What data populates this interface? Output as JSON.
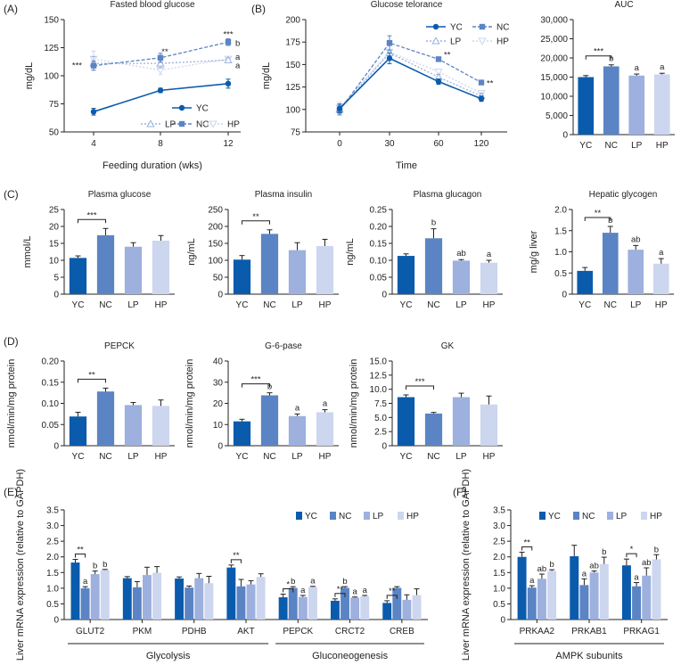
{
  "colors": {
    "YC": "#0b5bad",
    "NC": "#5b84c4",
    "LP": "#9db0de",
    "HP": "#ccd6ef",
    "axis": "#222222"
  },
  "panel_labels": {
    "A": "(A)",
    "B": "(B)",
    "C": "(C)",
    "D": "(D)",
    "E": "(E)",
    "F": "(F)"
  },
  "chart_data": [
    {
      "id": "fbg",
      "type": "line",
      "title": "Fasted blood glucose",
      "xlabel": "Feeding duration (wks)",
      "ylabel": "mg/dL",
      "x": [
        4,
        8,
        12
      ],
      "xticks": [
        "4",
        "8",
        "12"
      ],
      "ylim": [
        50,
        150
      ],
      "yticks": [
        50,
        75,
        100,
        125,
        150
      ],
      "series": [
        {
          "name": "YC",
          "values": [
            68,
            87,
            93
          ],
          "err": [
            3,
            2,
            4
          ]
        },
        {
          "name": "NC",
          "values": [
            109,
            116,
            130
          ],
          "err": [
            4,
            4,
            3
          ]
        },
        {
          "name": "LP",
          "values": [
            111,
            111,
            114
          ],
          "err": [
            6,
            4,
            2
          ]
        },
        {
          "name": "HP",
          "values": [
            115,
            105,
            115
          ],
          "err": [
            7,
            4,
            2
          ]
        }
      ],
      "legend": [
        "YC",
        "NC",
        "LP",
        "HP"
      ],
      "annotations": [
        {
          "text": "***",
          "at": "NC wk 4"
        },
        {
          "text": "**",
          "at": "NC wk 8"
        },
        {
          "text": "***",
          "at": "NC wk 12"
        },
        {
          "text": "b",
          "at": "NC wk 12"
        },
        {
          "text": "a",
          "at": "LP wk 12"
        },
        {
          "text": "a",
          "at": "HP wk 12"
        }
      ]
    },
    {
      "id": "ogtt",
      "type": "line",
      "title": "Glucose telorance",
      "xlabel": "Time",
      "ylabel": "mg/dL",
      "x": [
        0,
        30,
        60,
        120
      ],
      "xticks": [
        "0",
        "30",
        "60",
        "120"
      ],
      "ylim": [
        75,
        200
      ],
      "yticks": [
        75,
        100,
        125,
        150,
        175,
        200
      ],
      "series": [
        {
          "name": "YC",
          "values": [
            101,
            157,
            131,
            112
          ],
          "err": [
            5,
            6,
            3,
            3
          ]
        },
        {
          "name": "NC",
          "values": [
            99,
            174,
            156,
            130
          ],
          "err": [
            5,
            8,
            2,
            2
          ]
        },
        {
          "name": "LP",
          "values": [
            100,
            163,
            136,
            115
          ],
          "err": [
            6,
            8,
            3,
            3
          ]
        },
        {
          "name": "HP",
          "values": [
            102,
            164,
            142,
            118
          ],
          "err": [
            6,
            8,
            3,
            3
          ]
        }
      ],
      "legend": [
        "YC",
        "NC",
        "LP",
        "HP"
      ],
      "annotations": [
        {
          "text": "**",
          "at": "NC min 60"
        },
        {
          "text": "**",
          "at": "NC min 120"
        }
      ]
    },
    {
      "id": "auc",
      "type": "bar",
      "title": "AUC",
      "categories": [
        "YC",
        "NC",
        "LP",
        "HP"
      ],
      "values": [
        15000,
        17800,
        15400,
        15700
      ],
      "err": [
        400,
        400,
        400,
        300
      ],
      "ylim": [
        0,
        30000
      ],
      "yticks": [
        "0",
        "5,000",
        "10,000",
        "15,000",
        "20,000",
        "25,000",
        "30,000"
      ],
      "letters": [
        "",
        "b",
        "a",
        "a"
      ],
      "brackets": [
        {
          "from": 0,
          "to": 1,
          "text": "***"
        }
      ]
    },
    {
      "id": "pglu",
      "type": "bar",
      "title": "Plasma glucose",
      "ylabel": "mmol/L",
      "categories": [
        "YC",
        "NC",
        "LP",
        "HP"
      ],
      "values": [
        10.7,
        17.4,
        14,
        15.8
      ],
      "err": [
        0.6,
        2,
        1.2,
        1.5
      ],
      "ylim": [
        0,
        25
      ],
      "yticks": [
        "0",
        "5",
        "10",
        "15",
        "20",
        "25"
      ],
      "letters": [
        "",
        "",
        "",
        ""
      ],
      "brackets": [
        {
          "from": 0,
          "to": 1,
          "text": "***"
        }
      ]
    },
    {
      "id": "pins",
      "type": "bar",
      "title": "Plasma insulin",
      "ylabel": "ng/mL",
      "categories": [
        "YC",
        "NC",
        "LP",
        "HP"
      ],
      "values": [
        102,
        178,
        130,
        142
      ],
      "err": [
        12,
        12,
        22,
        20
      ],
      "ylim": [
        0,
        250
      ],
      "yticks": [
        "0",
        "50",
        "100",
        "150",
        "200",
        "250"
      ],
      "letters": [
        "",
        "",
        "",
        ""
      ],
      "brackets": [
        {
          "from": 0,
          "to": 1,
          "text": "**"
        }
      ]
    },
    {
      "id": "pgcg",
      "type": "bar",
      "title": "Plasma glucagon",
      "ylabel": "ng/mL",
      "categories": [
        "YC",
        "NC",
        "LP",
        "HP"
      ],
      "values": [
        0.113,
        0.165,
        0.099,
        0.093
      ],
      "err": [
        0.006,
        0.028,
        0.003,
        0.007
      ],
      "ylim": [
        0,
        0.25
      ],
      "yticks": [
        "0",
        "0.05",
        "0.10",
        "0.15",
        "0.20",
        "0.25"
      ],
      "letters": [
        "",
        "b",
        "ab",
        "a"
      ],
      "brackets": []
    },
    {
      "id": "hgly",
      "type": "bar",
      "title": "Hepatic glycogen",
      "ylabel": "mg/g liver",
      "categories": [
        "YC",
        "NC",
        "LP",
        "HP"
      ],
      "values": [
        0.55,
        1.45,
        1.05,
        0.72
      ],
      "err": [
        0.08,
        0.15,
        0.1,
        0.12
      ],
      "ylim": [
        0,
        2
      ],
      "yticks": [
        "0",
        "0.5",
        "1.0",
        "1.5",
        "2.0"
      ],
      "letters": [
        "",
        "b",
        "ab",
        "a"
      ],
      "brackets": [
        {
          "from": 0,
          "to": 1,
          "text": "**"
        }
      ]
    },
    {
      "id": "pepck",
      "type": "bar",
      "title": "PEPCK",
      "ylabel": "nmol/min/mg protein",
      "categories": [
        "YC",
        "NC",
        "LP",
        "HP"
      ],
      "values": [
        0.069,
        0.128,
        0.096,
        0.094
      ],
      "err": [
        0.01,
        0.008,
        0.006,
        0.014
      ],
      "ylim": [
        0,
        0.2
      ],
      "yticks": [
        "0",
        "0.05",
        "0.10",
        "0.15",
        "0.20"
      ],
      "letters": [
        "",
        "",
        "",
        ""
      ],
      "brackets": [
        {
          "from": 0,
          "to": 1,
          "text": "**"
        }
      ]
    },
    {
      "id": "g6p",
      "type": "bar",
      "title": "G-6-pase",
      "ylabel": "nmol/min/mg protein",
      "categories": [
        "YC",
        "NC",
        "LP",
        "HP"
      ],
      "values": [
        11.5,
        23.8,
        14,
        15.8
      ],
      "err": [
        1,
        1.2,
        1,
        1.2
      ],
      "ylim": [
        0,
        40
      ],
      "yticks": [
        "0",
        "10",
        "20",
        "30",
        "40"
      ],
      "letters": [
        "",
        "b",
        "a",
        "a"
      ],
      "brackets": [
        {
          "from": 0,
          "to": 1,
          "text": "***"
        }
      ]
    },
    {
      "id": "gk",
      "type": "bar",
      "title": "GK",
      "ylabel": "nmol/min/mg protein",
      "categories": [
        "YC",
        "NC",
        "LP",
        "HP"
      ],
      "values": [
        8.6,
        5.7,
        8.6,
        7.3
      ],
      "err": [
        0.4,
        0.2,
        0.7,
        1.5
      ],
      "ylim": [
        0,
        15
      ],
      "yticks": [
        "0",
        "2.5",
        "5.0",
        "7.5",
        "10.0",
        "12.5",
        "15.0"
      ],
      "letters": [
        "",
        "",
        "",
        ""
      ],
      "brackets": [
        {
          "from": 0,
          "to": 1,
          "text": "***"
        }
      ]
    },
    {
      "id": "mrna",
      "type": "bar",
      "ylabel": "Liver mRNA expression (relative to GAPDH)",
      "series_names": [
        "YC",
        "NC",
        "LP",
        "HP"
      ],
      "genes": [
        "GLUT2",
        "PKM",
        "PDHB",
        "AKT",
        "PEPCK",
        "CRCT2",
        "CREB"
      ],
      "groups": [
        {
          "name": "Glycolysis",
          "genes": [
            0,
            1,
            2,
            3
          ]
        },
        {
          "name": "Gluconeogenesis",
          "genes": [
            4,
            5,
            6
          ]
        }
      ],
      "values": [
        [
          1.82,
          1.0,
          1.45,
          1.58
        ],
        [
          1.32,
          1.03,
          1.42,
          1.49
        ],
        [
          1.31,
          1.02,
          1.32,
          1.16
        ],
        [
          1.66,
          1.06,
          1.12,
          1.36
        ],
        [
          0.71,
          1.01,
          0.72,
          1.04
        ],
        [
          0.6,
          1.01,
          0.7,
          0.74
        ],
        [
          0.53,
          1.01,
          0.63,
          0.78
        ]
      ],
      "err": [
        [
          0.1,
          0.05,
          0.1,
          0.02
        ],
        [
          0.05,
          0.18,
          0.25,
          0.2
        ],
        [
          0.05,
          0.05,
          0.15,
          0.22
        ],
        [
          0.08,
          0.22,
          0.12,
          0.1
        ],
        [
          0.1,
          0.04,
          0.05,
          0.02
        ],
        [
          0.06,
          0.04,
          0.02,
          0.03
        ],
        [
          0.07,
          0.04,
          0.16,
          0.2
        ]
      ],
      "ylim": [
        0,
        3.5
      ],
      "yticks": [
        "0",
        "0.5",
        "1.0",
        "1.5",
        "2.0",
        "2.5",
        "3.0",
        "3.5"
      ],
      "letters": [
        [
          "",
          "a",
          "b",
          "b"
        ],
        [
          "",
          "",
          "",
          ""
        ],
        [
          "",
          "",
          "",
          ""
        ],
        [
          "",
          "",
          "",
          ""
        ],
        [
          "",
          "b",
          "a",
          "a"
        ],
        [
          "",
          "b",
          "a",
          "a"
        ],
        [
          "",
          "",
          "",
          ""
        ]
      ],
      "brackets": [
        {
          "gene": 0,
          "text": "**"
        },
        {
          "gene": 3,
          "text": "**"
        },
        {
          "gene": 4,
          "text": "*"
        },
        {
          "gene": 5,
          "text": "**"
        },
        {
          "gene": 6,
          "text": "**"
        }
      ],
      "legend": [
        "YC",
        "NC",
        "LP",
        "HP"
      ]
    },
    {
      "id": "ampk",
      "type": "bar",
      "ylabel": "Liver mRNA expression (relative to GAPDH)",
      "series_names": [
        "YC",
        "NC",
        "LP",
        "HP"
      ],
      "genes": [
        "PRKAA2",
        "PRKAB1",
        "PRKAG1"
      ],
      "groups": [
        {
          "name": "AMPK subunits",
          "genes": [
            0,
            1,
            2
          ]
        }
      ],
      "values": [
        [
          2.0,
          1.02,
          1.3,
          1.55
        ],
        [
          2.02,
          1.1,
          1.5,
          1.77
        ],
        [
          1.73,
          1.06,
          1.4,
          1.92
        ]
      ],
      "err": [
        [
          0.15,
          0.06,
          0.15,
          0.04
        ],
        [
          0.35,
          0.2,
          0.05,
          0.22
        ],
        [
          0.2,
          0.12,
          0.25,
          0.15
        ]
      ],
      "ylim": [
        0,
        3.5
      ],
      "yticks": [
        "0",
        "0.5",
        "1.0",
        "1.5",
        "2.0",
        "2.5",
        "3.0",
        "3.5"
      ],
      "letters": [
        [
          "",
          "a",
          "ab",
          "b"
        ],
        [
          "",
          "a",
          "ab",
          "b"
        ],
        [
          "",
          "a",
          "ab",
          "b"
        ]
      ],
      "brackets": [
        {
          "gene": 0,
          "text": "**"
        },
        {
          "gene": 2,
          "text": "*"
        }
      ],
      "legend": [
        "YC",
        "NC",
        "LP",
        "HP"
      ]
    }
  ]
}
